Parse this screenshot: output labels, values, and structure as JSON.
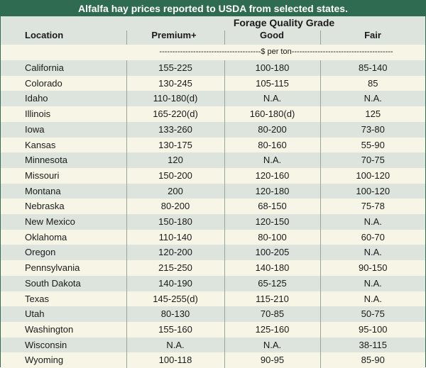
{
  "title": "Alfalfa hay prices reported to USDA from selected states.",
  "group_header": "Forage Quality Grade",
  "columns": {
    "location": "Location",
    "premium": "Premium+",
    "good": "Good",
    "fair": "Fair"
  },
  "unit_row": "---------------------------------------$ per ton---------------------------------------",
  "rows": [
    {
      "location": "California",
      "premium": "155-225",
      "good": "100-180",
      "fair": "85-140"
    },
    {
      "location": "Colorado",
      "premium": "130-245",
      "good": "105-115",
      "fair": "85"
    },
    {
      "location": "Idaho",
      "premium": "110-180(d)",
      "good": "N.A.",
      "fair": "N.A."
    },
    {
      "location": "Illinois",
      "premium": "165-220(d)",
      "good": "160-180(d)",
      "fair": "125"
    },
    {
      "location": "Iowa",
      "premium": "133-260",
      "good": "80-200",
      "fair": "73-80"
    },
    {
      "location": "Kansas",
      "premium": "130-175",
      "good": "80-160",
      "fair": "55-90"
    },
    {
      "location": "Minnesota",
      "premium": "120",
      "good": "N.A.",
      "fair": "70-75"
    },
    {
      "location": "Missouri",
      "premium": "150-200",
      "good": "120-160",
      "fair": "100-120"
    },
    {
      "location": "Montana",
      "premium": "200",
      "good": "120-180",
      "fair": "100-120"
    },
    {
      "location": "Nebraska",
      "premium": "80-200",
      "good": "68-150",
      "fair": "75-78"
    },
    {
      "location": "New Mexico",
      "premium": "150-180",
      "good": "120-150",
      "fair": "N.A."
    },
    {
      "location": "Oklahoma",
      "premium": "110-140",
      "good": "80-100",
      "fair": "60-70"
    },
    {
      "location": "Oregon",
      "premium": "120-200",
      "good": "100-205",
      "fair": "N.A."
    },
    {
      "location": "Pennsylvania",
      "premium": "215-250",
      "good": "140-180",
      "fair": "90-150"
    },
    {
      "location": "South Dakota",
      "premium": "140-190",
      "good": "65-125",
      "fair": "N.A."
    },
    {
      "location": "Texas",
      "premium": "145-255(d)",
      "good": "115-210",
      "fair": "N.A."
    },
    {
      "location": "Utah",
      "premium": "80-130",
      "good": "70-85",
      "fair": "50-75"
    },
    {
      "location": "Washington",
      "premium": "155-160",
      "good": "125-160",
      "fair": "95-100"
    },
    {
      "location": "Wisconsin",
      "premium": "N.A.",
      "good": "N.A.",
      "fair": "38-115"
    },
    {
      "location": "Wyoming",
      "premium": "100-118",
      "good": "90-95",
      "fair": "85-90"
    }
  ]
}
